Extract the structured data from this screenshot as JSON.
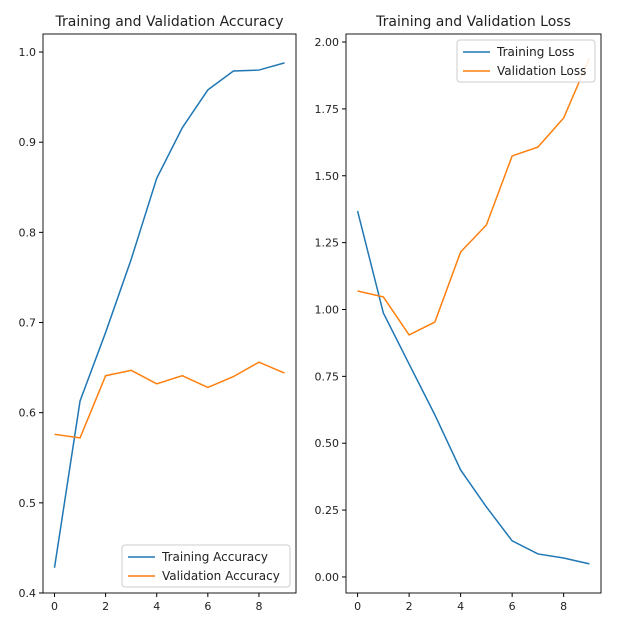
{
  "chart_data": [
    {
      "type": "line",
      "title": "Training and Validation Accuracy",
      "xlabel": "",
      "ylabel": "",
      "x": [
        0,
        1,
        2,
        3,
        4,
        5,
        6,
        7,
        8,
        9
      ],
      "xlim": [
        -0.45,
        9.45
      ],
      "ylim": [
        0.4,
        1.02
      ],
      "xticks": [
        0,
        2,
        4,
        6,
        8
      ],
      "yticks": [
        0.4,
        0.5,
        0.6,
        0.7,
        0.8,
        0.9,
        1.0
      ],
      "ytick_labels": [
        "0.4",
        "0.5",
        "0.6",
        "0.7",
        "0.8",
        "0.9",
        "1.0"
      ],
      "grid": false,
      "legend_position": "lower-right",
      "series": [
        {
          "name": "Training Accuracy",
          "color": "#1f77b4",
          "values": [
            0.428,
            0.613,
            0.689,
            0.77,
            0.86,
            0.916,
            0.958,
            0.979,
            0.98,
            0.988
          ]
        },
        {
          "name": "Validation Accuracy",
          "color": "#ff7f0e",
          "values": [
            0.576,
            0.572,
            0.641,
            0.647,
            0.632,
            0.641,
            0.628,
            0.64,
            0.656,
            0.644
          ]
        }
      ]
    },
    {
      "type": "line",
      "title": "Training and Validation Loss",
      "xlabel": "",
      "ylabel": "",
      "x": [
        0,
        1,
        2,
        3,
        4,
        5,
        6,
        7,
        8,
        9
      ],
      "xlim": [
        -0.45,
        9.45
      ],
      "ylim": [
        -0.06,
        2.03
      ],
      "xticks": [
        0,
        2,
        4,
        6,
        8
      ],
      "yticks": [
        0,
        0.25,
        0.5,
        0.75,
        1.0,
        1.25,
        1.5,
        1.75,
        2.0
      ],
      "ytick_labels": [
        "0.00",
        "0.25",
        "0.50",
        "0.75",
        "1.00",
        "1.25",
        "1.50",
        "1.75",
        "2.00"
      ],
      "grid": false,
      "legend_position": "upper-right",
      "series": [
        {
          "name": "Training Loss",
          "color": "#1f77b4",
          "values": [
            1.368,
            0.987,
            0.796,
            0.606,
            0.4,
            0.262,
            0.135,
            0.086,
            0.071,
            0.049
          ]
        },
        {
          "name": "Validation Loss",
          "color": "#ff7f0e",
          "values": [
            1.069,
            1.047,
            0.905,
            0.953,
            1.215,
            1.316,
            1.574,
            1.607,
            1.716,
            1.94
          ]
        }
      ]
    }
  ]
}
